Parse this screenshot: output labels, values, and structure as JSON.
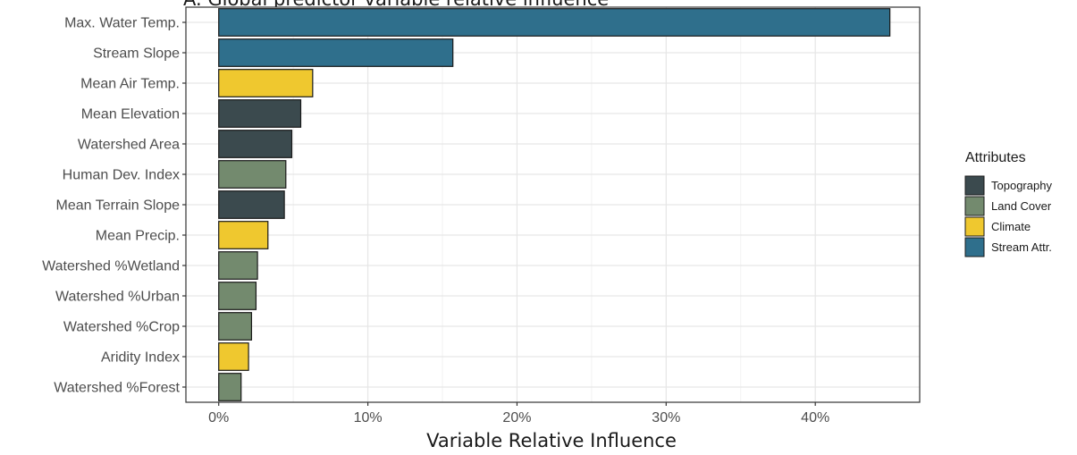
{
  "chart_data": {
    "type": "bar",
    "orientation": "horizontal",
    "title": "A. Global predictor variable relative influence",
    "xlabel": "Variable Relative Influence",
    "ylabel": "",
    "xlim": [
      -2.2,
      47
    ],
    "xticks": [
      0,
      10,
      20,
      30,
      40
    ],
    "xtick_labels": [
      "0%",
      "10%",
      "20%",
      "30%",
      "40%"
    ],
    "grid": true,
    "legend_position": "right",
    "legend_title": "Attributes",
    "legend": [
      {
        "name": "Topography",
        "color": "#3b4a4e"
      },
      {
        "name": "Land Cover",
        "color": "#738a6e"
      },
      {
        "name": "Climate",
        "color": "#efc82f"
      },
      {
        "name": "Stream Attr.",
        "color": "#2f6f8c"
      }
    ],
    "categories": [
      "Max. Water Temp.",
      "Stream Slope",
      "Mean Air Temp.",
      "Mean Elevation",
      "Watershed Area",
      "Human Dev. Index",
      "Mean Terrain Slope",
      "Mean Precip.",
      "Watershed %Wetland",
      "Watershed %Urban",
      "Watershed %Crop",
      "Aridity Index",
      "Watershed %Forest"
    ],
    "values": [
      45.0,
      15.7,
      6.3,
      5.5,
      4.9,
      4.5,
      4.4,
      3.3,
      2.6,
      2.5,
      2.2,
      2.0,
      1.5
    ],
    "groups": [
      "Stream Attr.",
      "Stream Attr.",
      "Climate",
      "Topography",
      "Topography",
      "Land Cover",
      "Topography",
      "Climate",
      "Land Cover",
      "Land Cover",
      "Land Cover",
      "Climate",
      "Land Cover"
    ]
  }
}
